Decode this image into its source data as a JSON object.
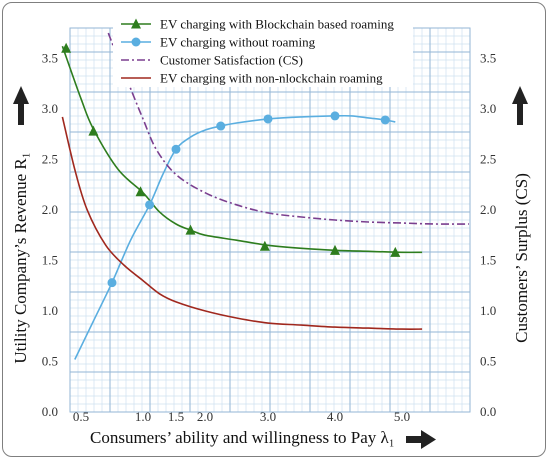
{
  "chart_data": {
    "type": "line",
    "xlabel": "Consumers’ ability and willingness to Pay λ₁",
    "ylabel_left": "Utility Company’s Revenue R₁",
    "ylabel_right": "Customers’ Surplus (CS)",
    "x_ticks": [
      "0.5",
      "1.0",
      "1.5",
      "2.0",
      "3.0",
      "4.0",
      "5.0"
    ],
    "y_ticks_left": [
      "0.0",
      "0.5",
      "1.0",
      "1.5",
      "2.0",
      "2.5",
      "3.0",
      "3.5"
    ],
    "y_ticks_right": [
      "0.0",
      "0.5",
      "1.0",
      "1.5",
      "2.0",
      "2.5",
      "3.0",
      "3.5"
    ],
    "ylim": [
      0,
      3.8
    ],
    "grid": true,
    "legend_position": "top",
    "series": [
      {
        "name": "EV charging with Blockchain based roaming",
        "color": "#2e7d1e",
        "marker": "triangle",
        "curve": [
          [
            0.35,
            3.62
          ],
          [
            0.5,
            3.1
          ],
          [
            0.6,
            2.8
          ],
          [
            0.8,
            2.4
          ],
          [
            1.0,
            2.17
          ],
          [
            1.25,
            1.98
          ],
          [
            1.5,
            1.86
          ],
          [
            1.75,
            1.8
          ],
          [
            2.0,
            1.75
          ],
          [
            2.5,
            1.7
          ],
          [
            3.0,
            1.65
          ],
          [
            3.5,
            1.62
          ],
          [
            4.0,
            1.6
          ],
          [
            4.5,
            1.59
          ],
          [
            5.0,
            1.58
          ],
          [
            5.3,
            1.58
          ]
        ],
        "markers": [
          [
            0.38,
            3.6
          ],
          [
            0.6,
            2.78
          ],
          [
            0.98,
            2.18
          ],
          [
            1.75,
            1.8
          ],
          [
            2.95,
            1.64
          ],
          [
            4.0,
            1.6
          ],
          [
            4.9,
            1.58
          ]
        ]
      },
      {
        "name": "EV charging  without roaming",
        "color": "#5aaee0",
        "marker": "circle",
        "curve": [
          [
            0.45,
            0.52
          ],
          [
            0.6,
            0.9
          ],
          [
            0.75,
            1.28
          ],
          [
            0.9,
            1.7
          ],
          [
            1.1,
            2.05
          ],
          [
            1.3,
            2.35
          ],
          [
            1.5,
            2.6
          ],
          [
            1.75,
            2.72
          ],
          [
            2.0,
            2.79
          ],
          [
            2.25,
            2.83
          ],
          [
            2.5,
            2.86
          ],
          [
            3.0,
            2.9
          ],
          [
            3.5,
            2.92
          ],
          [
            4.0,
            2.93
          ],
          [
            4.25,
            2.93
          ],
          [
            4.5,
            2.91
          ],
          [
            4.75,
            2.89
          ],
          [
            4.9,
            2.87
          ]
        ],
        "markers": [
          [
            0.75,
            1.28
          ],
          [
            1.1,
            2.05
          ],
          [
            1.5,
            2.6
          ],
          [
            2.25,
            2.83
          ],
          [
            3.0,
            2.9
          ],
          [
            4.0,
            2.93
          ],
          [
            4.75,
            2.89
          ]
        ]
      },
      {
        "name": "Customer Satisfaction (CS)",
        "color": "#7b3f8f",
        "dash": "8,3,2,3",
        "curve": [
          [
            0.72,
            3.75
          ],
          [
            0.8,
            3.5
          ],
          [
            0.9,
            3.2
          ],
          [
            1.0,
            2.9
          ],
          [
            1.2,
            2.6
          ],
          [
            1.5,
            2.35
          ],
          [
            2.0,
            2.17
          ],
          [
            2.5,
            2.05
          ],
          [
            3.0,
            1.97
          ],
          [
            3.5,
            1.93
          ],
          [
            4.0,
            1.9
          ],
          [
            4.5,
            1.88
          ],
          [
            5.0,
            1.87
          ],
          [
            5.5,
            1.86
          ],
          [
            6.0,
            1.86
          ]
        ]
      },
      {
        "name": "EV charging  with non-nlockchain roaming",
        "color": "#a0281e",
        "curve": [
          [
            0.35,
            2.92
          ],
          [
            0.45,
            2.4
          ],
          [
            0.55,
            2.0
          ],
          [
            0.7,
            1.65
          ],
          [
            0.85,
            1.45
          ],
          [
            1.0,
            1.3
          ],
          [
            1.25,
            1.17
          ],
          [
            1.5,
            1.09
          ],
          [
            2.0,
            1.0
          ],
          [
            2.5,
            0.93
          ],
          [
            3.0,
            0.88
          ],
          [
            3.5,
            0.86
          ],
          [
            4.0,
            0.84
          ],
          [
            4.5,
            0.83
          ],
          [
            5.0,
            0.82
          ],
          [
            5.3,
            0.82
          ]
        ]
      }
    ]
  }
}
